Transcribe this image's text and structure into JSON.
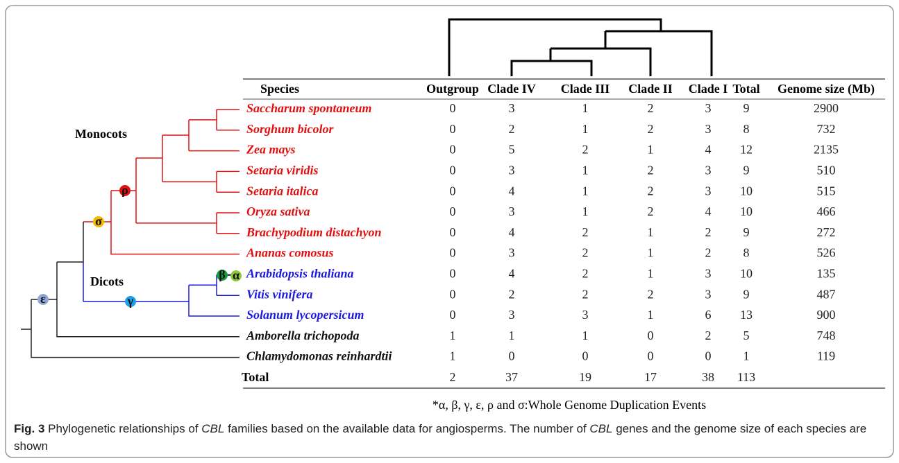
{
  "table": {
    "headers": [
      "Species",
      "Outgroup",
      "Clade IV",
      "Clade III",
      "Clade II",
      "Clade I",
      "Total",
      "Genome size (Mb)"
    ],
    "rows": [
      {
        "species": "Saccharum spontaneum",
        "color": "#e01010",
        "values": [
          0,
          3,
          1,
          2,
          3,
          9,
          2900
        ]
      },
      {
        "species": "Sorghum bicolor",
        "color": "#e01010",
        "values": [
          0,
          2,
          1,
          2,
          3,
          8,
          732
        ]
      },
      {
        "species": "Zea mays",
        "color": "#e01010",
        "values": [
          0,
          5,
          2,
          1,
          4,
          12,
          2135
        ]
      },
      {
        "species": "Setaria viridis",
        "color": "#e01010",
        "values": [
          0,
          3,
          1,
          2,
          3,
          9,
          510
        ]
      },
      {
        "species": "Setaria italica",
        "color": "#e01010",
        "values": [
          0,
          4,
          1,
          2,
          3,
          10,
          515
        ]
      },
      {
        "species": "Oryza sativa",
        "color": "#e01010",
        "values": [
          0,
          3,
          1,
          2,
          4,
          10,
          466
        ]
      },
      {
        "species": "Brachypodium distachyon",
        "color": "#e01010",
        "values": [
          0,
          4,
          2,
          1,
          2,
          9,
          272
        ]
      },
      {
        "species": "Ananas comosus",
        "color": "#e01010",
        "values": [
          0,
          3,
          2,
          1,
          2,
          8,
          526
        ]
      },
      {
        "species": "Arabidopsis thaliana",
        "color": "#1a1adc",
        "values": [
          0,
          4,
          2,
          1,
          3,
          10,
          135
        ]
      },
      {
        "species": "Vitis vinifera",
        "color": "#1a1adc",
        "values": [
          0,
          2,
          2,
          2,
          3,
          9,
          487
        ]
      },
      {
        "species": "Solanum lycopersicum",
        "color": "#1a1adc",
        "values": [
          0,
          3,
          3,
          1,
          6,
          13,
          900
        ]
      },
      {
        "species": "Amborella trichopoda",
        "color": "#111111",
        "values": [
          1,
          1,
          1,
          0,
          2,
          5,
          748
        ]
      },
      {
        "species": "Chlamydomonas reinhardtii",
        "color": "#111111",
        "values": [
          1,
          0,
          0,
          0,
          0,
          1,
          119
        ]
      }
    ],
    "total": {
      "label": "Total",
      "values": [
        2,
        37,
        19,
        17,
        38,
        113
      ]
    }
  },
  "tree": {
    "groups": [
      "Monocots",
      "Dicots"
    ],
    "events": [
      {
        "label": "ε",
        "color": "#8fa8d8"
      },
      {
        "label": "σ",
        "color": "#f5b800"
      },
      {
        "label": "ρ",
        "color": "#e01010"
      },
      {
        "label": "γ",
        "color": "#1ea0e8"
      },
      {
        "label": "β",
        "color": "#1a9a3a"
      },
      {
        "label": "α",
        "color": "#8dc840"
      }
    ]
  },
  "footnote": "*α, β, γ, ε, ρ and σ:Whole Genome Duplication Events",
  "caption": {
    "label": "Fig. 3",
    "parts": [
      " Phylogenetic relationships of ",
      "CBL",
      " families based on the available data for angiosperms. The number of ",
      "CBL",
      " genes and the genome size of each species are shown"
    ]
  }
}
